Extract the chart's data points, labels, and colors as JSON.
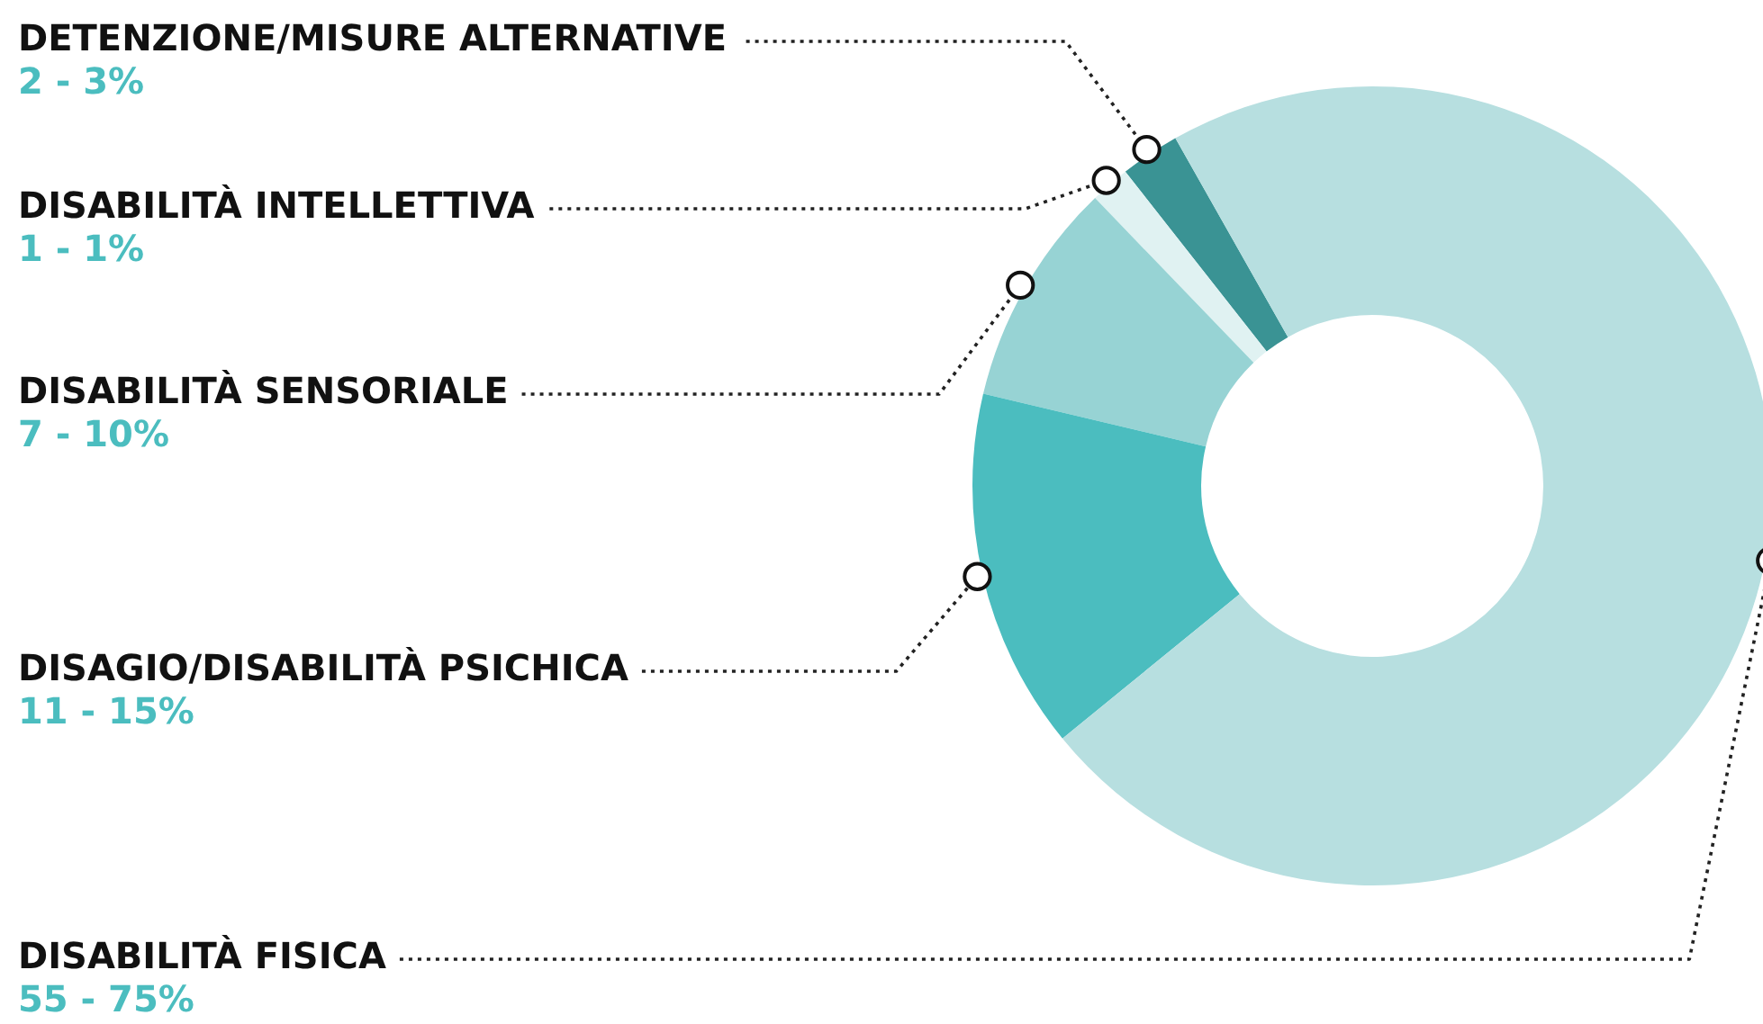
{
  "chart_data": {
    "type": "donut",
    "categories": [
      "DETENZIONE/MISURE ALTERNATIVE",
      "DISABILITÀ INTELLETTIVA",
      "DISABILITÀ SENSORIALE",
      "DISAGIO/DISABILITÀ PSICHICA",
      "DISABILITÀ FISICA"
    ],
    "values": [
      2.4,
      1.6,
      9.1,
      14.6,
      72.3
    ],
    "colors": [
      "#3a9394",
      "#e0f2f2",
      "#97d3d4",
      "#4bbdbf",
      "#b7dfe0"
    ],
    "annotations": [
      "2 - 3%",
      "1 - 1%",
      "7 - 10%",
      "11 - 15%",
      "55 - 75%"
    ]
  }
}
